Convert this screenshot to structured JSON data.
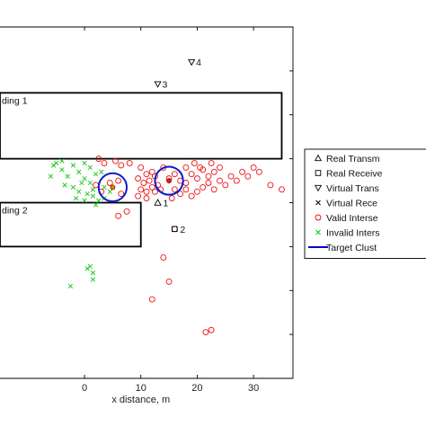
{
  "chart_data": {
    "type": "scatter",
    "xlabel": "x distance, m",
    "x_ticks": [
      0,
      10,
      20,
      30
    ],
    "xlim": [
      -15,
      37
    ],
    "ylim": [
      -40,
      40
    ],
    "grid": false,
    "legend_position": "right",
    "legend": [
      {
        "label": "Real Transm",
        "marker": "triangle-up",
        "color": "#000000"
      },
      {
        "label": "Real Receive",
        "marker": "square",
        "color": "#000000"
      },
      {
        "label": "Virtual Trans",
        "marker": "triangle-down",
        "color": "#000000"
      },
      {
        "label": "Virtual Rece",
        "marker": "x",
        "color": "#000000"
      },
      {
        "label": "Valid Interse",
        "marker": "circle",
        "color": "#ff0000"
      },
      {
        "label": "Invalid Inters",
        "marker": "x",
        "color": "#00cc00"
      },
      {
        "label": "Target Clust",
        "marker": "line",
        "color": "#0000cc"
      }
    ],
    "buildings": [
      {
        "label": "ding 1",
        "x": [
          -15,
          35
        ],
        "y": [
          10,
          25
        ]
      },
      {
        "label": "ding 2",
        "x": [
          -15,
          10
        ],
        "y": [
          -10,
          0
        ]
      }
    ],
    "transmitters": [
      {
        "label": "1",
        "x": 13,
        "y": 0
      }
    ],
    "receivers": [
      {
        "label": "2",
        "x": 16,
        "y": -6
      }
    ],
    "virtual_transmitters": [
      {
        "label": "3",
        "x": 13,
        "y": 27
      },
      {
        "label": "4",
        "x": 19,
        "y": 32
      }
    ],
    "valid_intersections": [
      [
        2.5,
        10
      ],
      [
        3.5,
        9
      ],
      [
        5.5,
        9.5
      ],
      [
        6.5,
        8.5
      ],
      [
        8,
        9
      ],
      [
        10,
        8
      ],
      [
        12,
        7
      ],
      [
        14,
        8
      ],
      [
        11,
        6.5
      ],
      [
        12.5,
        6
      ],
      [
        9.5,
        5.5
      ],
      [
        10.5,
        4.5
      ],
      [
        11.5,
        5
      ],
      [
        12,
        3.5
      ],
      [
        13,
        4
      ],
      [
        10,
        3
      ],
      [
        11,
        2.5
      ],
      [
        12.5,
        2.5
      ],
      [
        13.5,
        3
      ],
      [
        15,
        5.5
      ],
      [
        16,
        6.5
      ],
      [
        17,
        5
      ],
      [
        18,
        4.5
      ],
      [
        19,
        6.5
      ],
      [
        20,
        5.5
      ],
      [
        21,
        7.5
      ],
      [
        22,
        6
      ],
      [
        23,
        7
      ],
      [
        24,
        8
      ],
      [
        18,
        8
      ],
      [
        19.5,
        9
      ],
      [
        20.5,
        8
      ],
      [
        22.5,
        9
      ],
      [
        21,
        3.5
      ],
      [
        22,
        4.5
      ],
      [
        23,
        3
      ],
      [
        24,
        5
      ],
      [
        25,
        4
      ],
      [
        26,
        6
      ],
      [
        27,
        5
      ],
      [
        28,
        7
      ],
      [
        29,
        6
      ],
      [
        30,
        8
      ],
      [
        31,
        7
      ],
      [
        33,
        4
      ],
      [
        35,
        3
      ],
      [
        16,
        3
      ],
      [
        17,
        2
      ],
      [
        18,
        3
      ],
      [
        19,
        1.5
      ],
      [
        20,
        2.5
      ],
      [
        15.5,
        1
      ],
      [
        9.5,
        1.5
      ],
      [
        11,
        1
      ],
      [
        4.5,
        4.5
      ],
      [
        6,
        5
      ],
      [
        3,
        2.5
      ],
      [
        2,
        4
      ],
      [
        6.5,
        2
      ],
      [
        15,
        -18
      ],
      [
        21.5,
        -29.5
      ],
      [
        22.5,
        -29
      ],
      [
        12,
        -22
      ],
      [
        14,
        -12.5
      ],
      [
        7.5,
        -2
      ],
      [
        6,
        -3
      ],
      [
        16,
        -6
      ]
    ],
    "invalid_intersections": [
      [
        -5,
        9
      ],
      [
        -4,
        7.5
      ],
      [
        -3,
        6
      ],
      [
        -2,
        8.5
      ],
      [
        -1,
        7
      ],
      [
        0,
        5.5
      ],
      [
        1,
        4.5
      ],
      [
        -3.5,
        4
      ],
      [
        -2,
        3.5
      ],
      [
        -1,
        2.5
      ],
      [
        0.5,
        2
      ],
      [
        1.5,
        1.5
      ],
      [
        2.5,
        0.5
      ],
      [
        3.5,
        1
      ],
      [
        -4,
        9.5
      ],
      [
        -5.5,
        8.5
      ],
      [
        0,
        9
      ],
      [
        1,
        8
      ],
      [
        2,
        6.5
      ],
      [
        3,
        7
      ],
      [
        -6,
        6
      ],
      [
        -0.5,
        4.5
      ],
      [
        1.5,
        3
      ],
      [
        3.5,
        3.5
      ],
      [
        4.5,
        2.5
      ],
      [
        -1.5,
        1
      ],
      [
        0,
        0.5
      ],
      [
        2,
        -0.5
      ],
      [
        0.5,
        -15
      ],
      [
        1.5,
        -16
      ],
      [
        -2.5,
        -19
      ],
      [
        1,
        -14.5
      ],
      [
        1.5,
        -17.5
      ]
    ],
    "target_clusters": [
      {
        "x": 5,
        "y": 3.5,
        "r": 2.8
      },
      {
        "x": 15,
        "y": 5,
        "r": 2.8
      }
    ]
  }
}
